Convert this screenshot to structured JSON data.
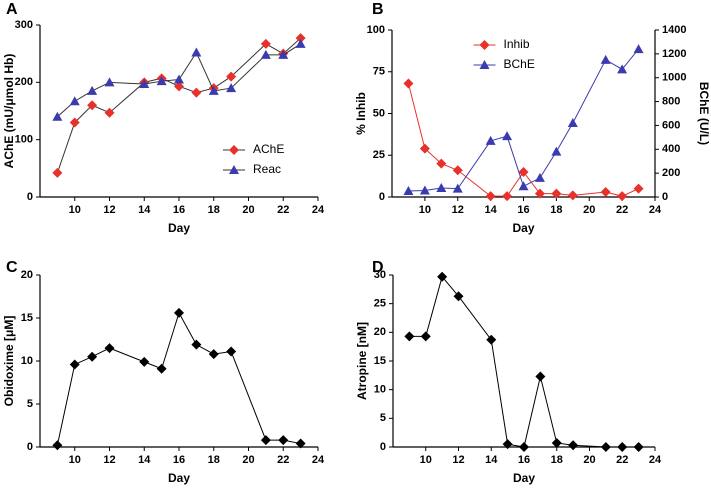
{
  "chart_data": [
    {
      "type": "line",
      "panel_label": "A",
      "x_label": "Day",
      "y_label": "AChE (mU/μmol Hb)",
      "x": [
        9,
        10,
        11,
        12,
        14,
        15,
        16,
        17,
        18,
        19,
        21,
        22,
        23
      ],
      "xlim": [
        8,
        24
      ],
      "xticks": [
        10,
        12,
        14,
        16,
        18,
        20,
        22,
        24
      ],
      "ylim": [
        0,
        300
      ],
      "yticks": [
        0,
        100,
        200,
        300
      ],
      "legend": "lower right",
      "series": [
        {
          "name": "AChE",
          "color": "#e8312a",
          "line_color": "#333333",
          "marker": "diamond",
          "values": [
            42,
            130,
            160,
            147,
            200,
            207,
            193,
            182,
            190,
            210,
            267,
            250,
            277
          ]
        },
        {
          "name": "Reac",
          "color": "#3b3bb0",
          "line_color": "#333333",
          "marker": "triangle",
          "values": [
            140,
            167,
            185,
            200,
            197,
            202,
            205,
            252,
            185,
            190,
            248,
            248,
            267
          ]
        }
      ]
    },
    {
      "type": "line",
      "panel_label": "B",
      "x_label": "Day",
      "y_label": "% Inhib",
      "y2_label": "BChE (U/L)",
      "x": [
        9,
        10,
        11,
        12,
        14,
        15,
        16,
        17,
        18,
        19,
        21,
        22,
        23
      ],
      "xlim": [
        8,
        24
      ],
      "xticks": [
        10,
        12,
        14,
        16,
        18,
        20,
        22,
        24
      ],
      "ylim": [
        0,
        100
      ],
      "yticks": [
        0,
        25,
        50,
        75,
        100
      ],
      "y2lim": [
        0,
        1400
      ],
      "y2ticks": [
        0,
        200,
        400,
        600,
        800,
        1000,
        1200,
        1400
      ],
      "legend": "upper center",
      "series": [
        {
          "name": "Inhib",
          "color": "#e8312a",
          "line_color": "#e8312a",
          "marker": "diamond",
          "values": [
            68,
            29,
            20,
            16,
            0.5,
            0.5,
            15,
            2,
            2,
            1,
            3,
            0.5,
            5
          ]
        },
        {
          "name": "BChE",
          "color": "#3b3bb0",
          "line_color": "#3b3bb0",
          "marker": "triangle",
          "axis": "y2",
          "values": [
            50,
            55,
            75,
            70,
            470,
            510,
            90,
            160,
            380,
            620,
            1150,
            1070,
            1240
          ]
        }
      ]
    },
    {
      "type": "line",
      "panel_label": "C",
      "x_label": "Day",
      "y_label": "Obidoxime [μM]",
      "x": [
        9,
        10,
        11,
        12,
        14,
        15,
        16,
        17,
        18,
        19,
        21,
        22,
        23
      ],
      "xlim": [
        8,
        24
      ],
      "xticks": [
        10,
        12,
        14,
        16,
        18,
        20,
        22,
        24
      ],
      "ylim": [
        0,
        20
      ],
      "yticks": [
        0,
        5,
        10,
        15,
        20
      ],
      "series": [
        {
          "color": "#000000",
          "line_color": "#000000",
          "marker": "diamond",
          "values": [
            0.2,
            9.6,
            10.5,
            11.5,
            9.9,
            9.1,
            15.6,
            11.9,
            10.8,
            11.1,
            0.8,
            0.8,
            0.4
          ]
        }
      ]
    },
    {
      "type": "line",
      "panel_label": "D",
      "x_label": "Day",
      "y_label": "Atropine [nM]",
      "x": [
        9,
        10,
        11,
        12,
        14,
        15,
        16,
        17,
        18,
        19,
        21,
        22,
        23
      ],
      "xlim": [
        8,
        24
      ],
      "xticks": [
        10,
        12,
        14,
        16,
        18,
        20,
        22,
        24
      ],
      "ylim": [
        0,
        30
      ],
      "yticks": [
        0,
        5,
        10,
        15,
        20,
        25,
        30
      ],
      "series": [
        {
          "color": "#000000",
          "line_color": "#000000",
          "marker": "diamond",
          "values": [
            19.3,
            19.3,
            29.7,
            26.3,
            18.7,
            0.5,
            0,
            12.3,
            0.7,
            0.3,
            0,
            0,
            0
          ]
        }
      ]
    }
  ]
}
